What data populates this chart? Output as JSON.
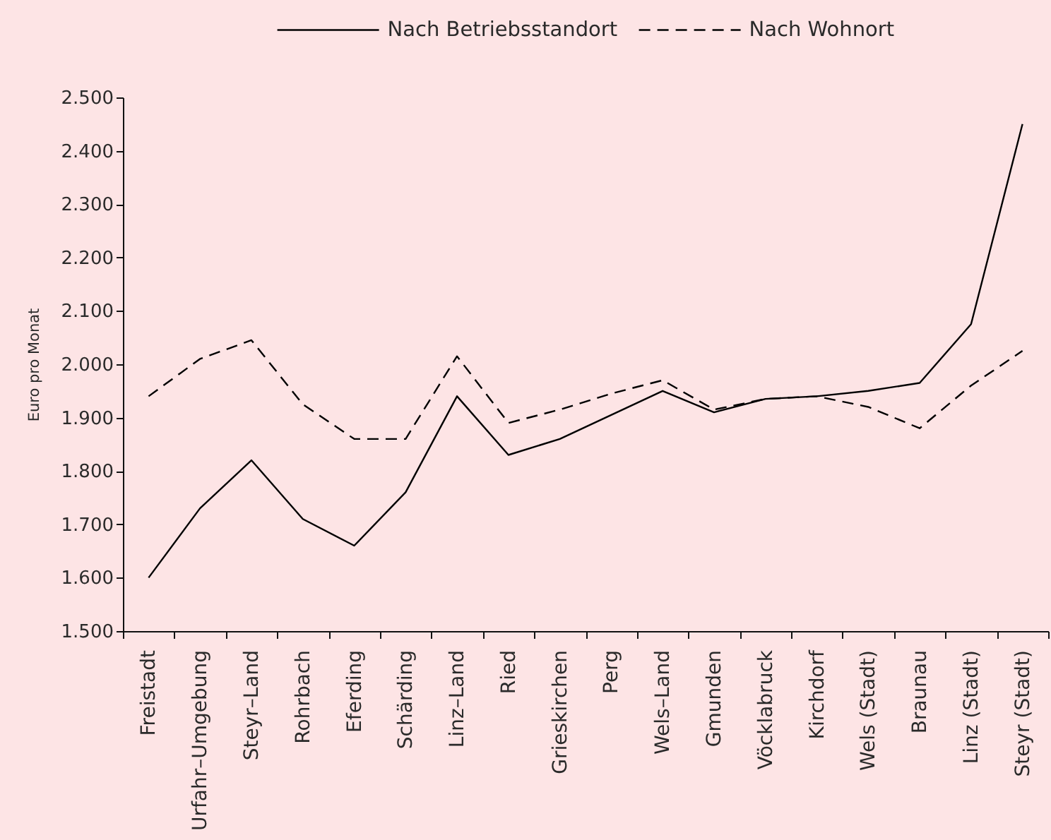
{
  "chart_data": {
    "type": "line",
    "ylabel": "Euro pro Monat",
    "categories": [
      "Freistadt",
      "Urfahr–Umgebung",
      "Steyr–Land",
      "Rohrbach",
      "Eferding",
      "Schärding",
      "Linz–Land",
      "Ried",
      "Grieskirchen",
      "Perg",
      "Wels–Land",
      "Gmunden",
      "Vöcklabruck",
      "Kirchdorf",
      "Wels (Stadt)",
      "Braunau",
      "Linz (Stadt)",
      "Steyr (Stadt)"
    ],
    "series": [
      {
        "name": "Nach Betriebsstandort",
        "color": "#000000",
        "line_style": "solid",
        "values": [
          1600,
          1730,
          1820,
          1710,
          1660,
          1760,
          1940,
          1830,
          1860,
          1905,
          1950,
          1910,
          1935,
          1940,
          1950,
          1965,
          2075,
          2450
        ]
      },
      {
        "name": "Nach Wohnort",
        "color": "#000000",
        "line_style": "dashed",
        "values": [
          1940,
          2010,
          2045,
          1925,
          1860,
          1860,
          2015,
          1890,
          1915,
          1945,
          1970,
          1915,
          1935,
          1940,
          1920,
          1880,
          1960,
          2025
        ]
      }
    ],
    "ylim": [
      1500,
      2500
    ],
    "yticks": [
      {
        "value": 1500,
        "label": "1.500"
      },
      {
        "value": 1600,
        "label": "1.600"
      },
      {
        "value": 1700,
        "label": "1.700"
      },
      {
        "value": 1800,
        "label": "1.800"
      },
      {
        "value": 1900,
        "label": "1.900"
      },
      {
        "value": 2000,
        "label": "2.000"
      },
      {
        "value": 2100,
        "label": "2.100"
      },
      {
        "value": 2200,
        "label": "2.200"
      },
      {
        "value": 2300,
        "label": "2.300"
      },
      {
        "value": 2400,
        "label": "2.400"
      },
      {
        "value": 2500,
        "label": "2.500"
      }
    ],
    "grid": false,
    "legend": "top"
  }
}
